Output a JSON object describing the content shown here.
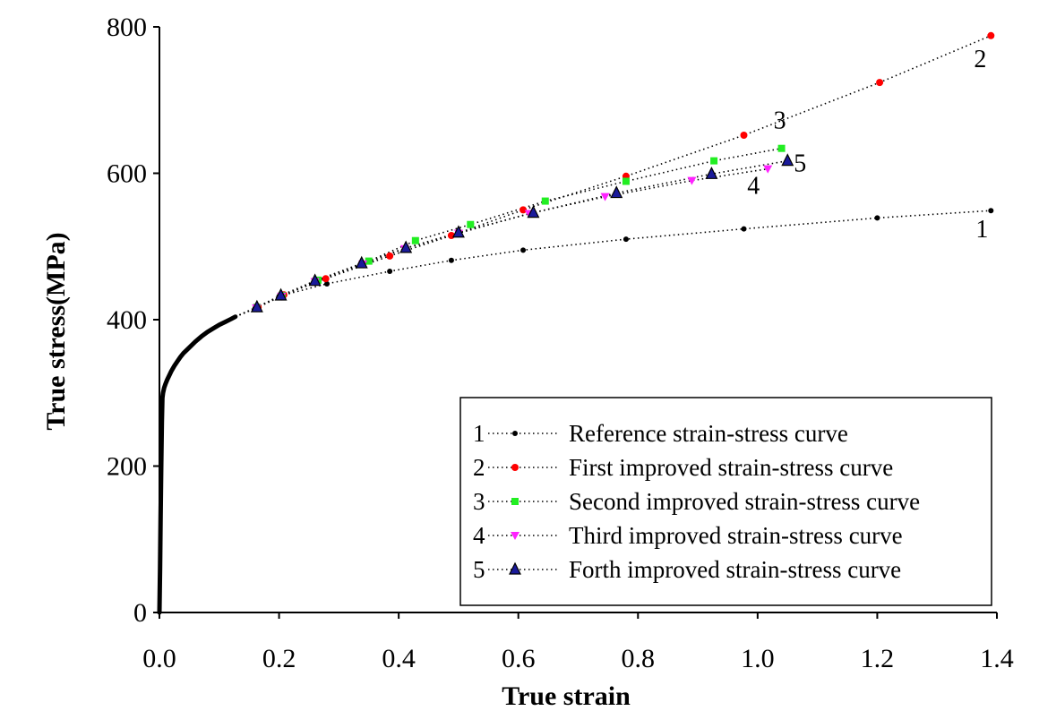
{
  "chart_data": {
    "type": "scatter",
    "xlabel": "True strain",
    "ylabel": "True stress(MPa)",
    "xlim": [
      0.0,
      1.4
    ],
    "ylim": [
      0,
      800
    ],
    "xticks": [
      "0.0",
      "0.2",
      "0.4",
      "0.6",
      "0.8",
      "1.0",
      "1.2",
      "1.4"
    ],
    "yticks": [
      "0",
      "200",
      "400",
      "600",
      "800"
    ],
    "grid": false,
    "legend_position": "bottom-right",
    "base_curve": {
      "x": [
        0.0,
        0.001,
        0.002,
        0.003,
        0.004,
        0.005,
        0.006,
        0.008,
        0.01,
        0.013,
        0.016,
        0.02,
        0.025,
        0.03,
        0.035,
        0.04,
        0.05,
        0.06,
        0.07,
        0.08,
        0.09,
        0.1,
        0.11,
        0.12,
        0.127
      ],
      "y": [
        0,
        60,
        130,
        200,
        260,
        293,
        300,
        307,
        312,
        318,
        323,
        330,
        337,
        343,
        349,
        354,
        362,
        370,
        377,
        383,
        388,
        393,
        397,
        401,
        404
      ],
      "color": "#000000"
    },
    "series": [
      {
        "name": "Reference strain-stress curve",
        "label": "1",
        "marker": "circle",
        "color": "#000000",
        "x": [
          0.16,
          0.2,
          0.28,
          0.385,
          0.488,
          0.608,
          0.78,
          0.977,
          1.2,
          1.39
        ],
        "y": [
          416,
          432,
          449,
          466,
          481,
          495,
          510,
          524,
          539,
          549
        ]
      },
      {
        "name": "First improved strain-stress curve",
        "label": "2",
        "marker": "circle",
        "color": "#ff0000",
        "x": [
          0.165,
          0.208,
          0.278,
          0.385,
          0.488,
          0.608,
          0.78,
          0.977,
          1.204,
          1.39
        ],
        "y": [
          417,
          434,
          456,
          487,
          515,
          550,
          596,
          652,
          724,
          788
        ]
      },
      {
        "name": "Second improved strain-stress curve",
        "label": "3",
        "marker": "square",
        "color": "#22ee22",
        "x": [
          0.163,
          0.205,
          0.265,
          0.35,
          0.428,
          0.52,
          0.645,
          0.78,
          0.927,
          1.04
        ],
        "y": [
          417,
          433,
          454,
          480,
          508,
          530,
          562,
          589,
          617,
          634
        ]
      },
      {
        "name": "Third improved strain-stress curve",
        "label": "4",
        "marker": "triangle-down",
        "color": "#ff22ff",
        "x": [
          0.162,
          0.204,
          0.26,
          0.34,
          0.41,
          0.5,
          0.618,
          0.745,
          0.89,
          1.017
        ],
        "y": [
          416,
          432,
          452,
          476,
          497,
          518,
          545,
          568,
          590,
          606
        ]
      },
      {
        "name": "Forth improved strain-stress curve",
        "label": "5",
        "marker": "triangle-up",
        "color": "#1a1a9a",
        "x": [
          0.163,
          0.203,
          0.26,
          0.338,
          0.412,
          0.5,
          0.625,
          0.764,
          0.923,
          1.05
        ],
        "y": [
          417,
          433,
          453,
          477,
          498,
          519,
          546,
          573,
          599,
          617
        ]
      }
    ]
  }
}
